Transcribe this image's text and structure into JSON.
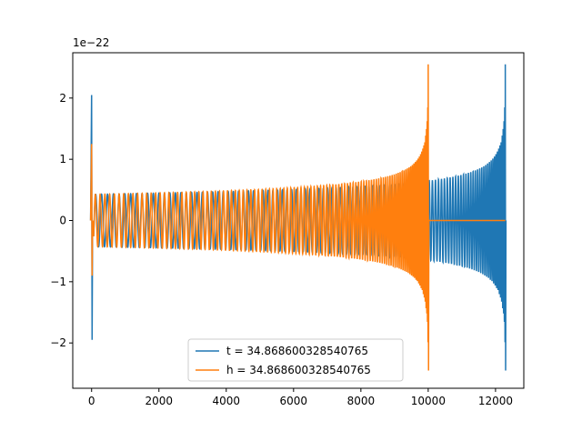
{
  "chart_data": {
    "type": "line",
    "scale_exponent_label": "1e−22",
    "xlim": [
      -560,
      12840
    ],
    "ylim": [
      -2.74,
      2.74
    ],
    "y_scale": 1e-22,
    "x_ticks": [
      {
        "value": 0,
        "label": "0"
      },
      {
        "value": 2000,
        "label": "2000"
      },
      {
        "value": 4000,
        "label": "4000"
      },
      {
        "value": 6000,
        "label": "6000"
      },
      {
        "value": 8000,
        "label": "8000"
      },
      {
        "value": 10000,
        "label": "10000"
      },
      {
        "value": 12000,
        "label": "12000"
      }
    ],
    "y_ticks": [
      {
        "value": -2,
        "label": "−2"
      },
      {
        "value": -1,
        "label": "−1"
      },
      {
        "value": 0,
        "label": "0"
      },
      {
        "value": 1,
        "label": "1"
      },
      {
        "value": 2,
        "label": "2"
      }
    ],
    "legend": {
      "placement": "lower-center"
    },
    "series": [
      {
        "name": "t = 34.868600328540765",
        "color": "#1f77b4",
        "end_x": 12290,
        "start_x": 0,
        "base_amplitude": 0.45,
        "peak_amplitude": 2.55,
        "initial_spike": [
          2.05,
          -1.95
        ],
        "cycles": 78,
        "zero_tail": false
      },
      {
        "name": "h = 34.868600328540765",
        "color": "#ff7f0e",
        "end_x": 10000,
        "start_x": 0,
        "base_amplitude": 0.45,
        "peak_amplitude": 2.55,
        "initial_spike": [
          1.25,
          -0.9
        ],
        "cycles": 78,
        "zero_tail": true,
        "zero_tail_end_x": 12290
      }
    ]
  }
}
